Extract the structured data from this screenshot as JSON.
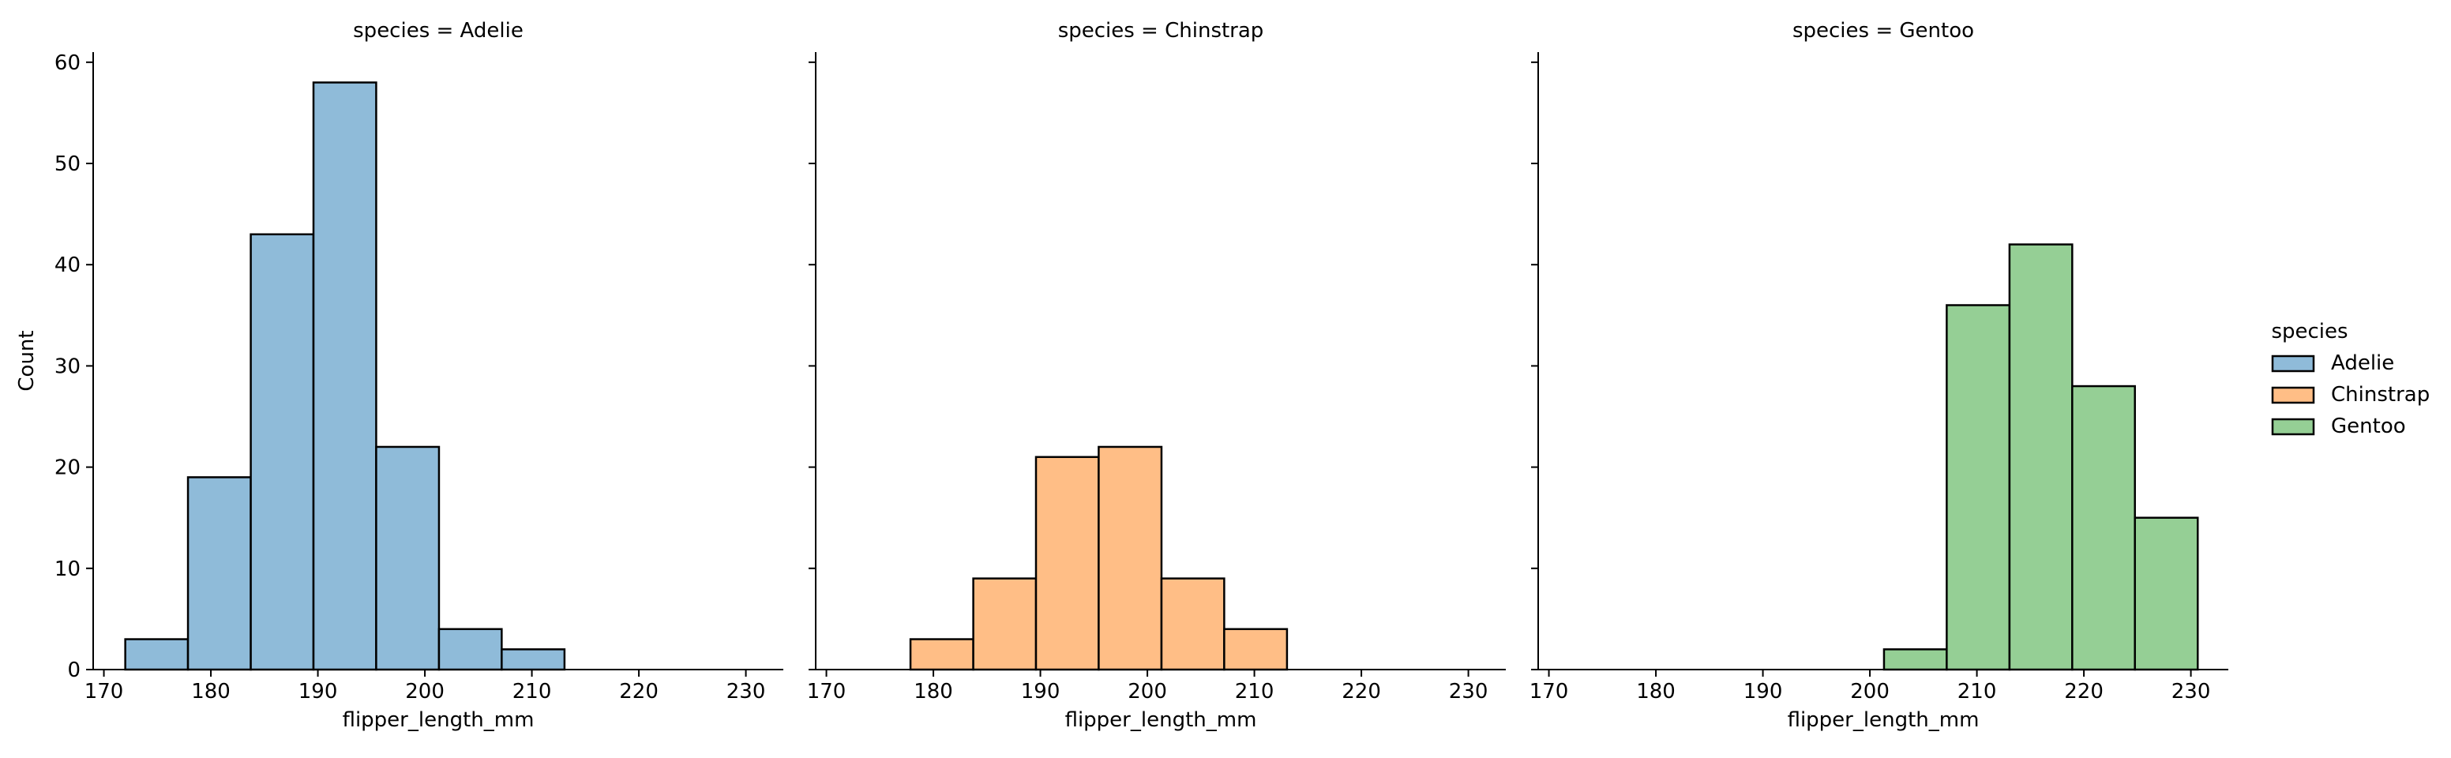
{
  "chart_data": {
    "type": "bar",
    "subtype": "faceted-histogram",
    "x_field_label": "flipper_length_mm",
    "y_field_label": "Count",
    "xlim": [
      169,
      233.5
    ],
    "ylim": [
      0,
      61
    ],
    "x_ticks": [
      170,
      180,
      190,
      200,
      210,
      220,
      230
    ],
    "y_ticks": [
      0,
      10,
      20,
      30,
      40,
      50,
      60
    ],
    "shared_bins": [
      172,
      177.86,
      183.73,
      189.59,
      195.45,
      201.32,
      207.18,
      213.05,
      218.91,
      224.77,
      230.64
    ],
    "grid": false,
    "legend": {
      "title": "species",
      "placement": "right",
      "entries": [
        {
          "label": "Adelie",
          "color": "#8fbbd9",
          "edge": "#000000"
        },
        {
          "label": "Chinstrap",
          "color": "#ffbe86",
          "edge": "#000000"
        },
        {
          "label": "Gentoo",
          "color": "#95cf95",
          "edge": "#000000"
        }
      ]
    },
    "panels": [
      {
        "title": "species = Adelie",
        "series": "Adelie",
        "color": "#8fbbd9",
        "show_y_axis_labels": true,
        "bars": [
          {
            "x0": 172,
            "x1": 177.86,
            "count": 3
          },
          {
            "x0": 177.86,
            "x1": 183.73,
            "count": 19
          },
          {
            "x0": 183.73,
            "x1": 189.59,
            "count": 43
          },
          {
            "x0": 189.59,
            "x1": 195.45,
            "count": 58
          },
          {
            "x0": 195.45,
            "x1": 201.32,
            "count": 22
          },
          {
            "x0": 201.32,
            "x1": 207.18,
            "count": 4
          },
          {
            "x0": 207.18,
            "x1": 213.05,
            "count": 2
          }
        ]
      },
      {
        "title": "species = Chinstrap",
        "series": "Chinstrap",
        "color": "#ffbe86",
        "show_y_axis_labels": false,
        "bars": [
          {
            "x0": 177.86,
            "x1": 183.73,
            "count": 3
          },
          {
            "x0": 183.73,
            "x1": 189.59,
            "count": 9
          },
          {
            "x0": 189.59,
            "x1": 195.45,
            "count": 21
          },
          {
            "x0": 195.45,
            "x1": 201.32,
            "count": 22
          },
          {
            "x0": 201.32,
            "x1": 207.18,
            "count": 9
          },
          {
            "x0": 207.18,
            "x1": 213.05,
            "count": 4
          }
        ]
      },
      {
        "title": "species = Gentoo",
        "series": "Gentoo",
        "color": "#95cf95",
        "show_y_axis_labels": false,
        "bars": [
          {
            "x0": 201.32,
            "x1": 207.18,
            "count": 2
          },
          {
            "x0": 207.18,
            "x1": 213.05,
            "count": 36
          },
          {
            "x0": 213.05,
            "x1": 218.91,
            "count": 42
          },
          {
            "x0": 218.91,
            "x1": 224.77,
            "count": 28
          },
          {
            "x0": 224.77,
            "x1": 230.64,
            "count": 15
          }
        ]
      }
    ]
  }
}
